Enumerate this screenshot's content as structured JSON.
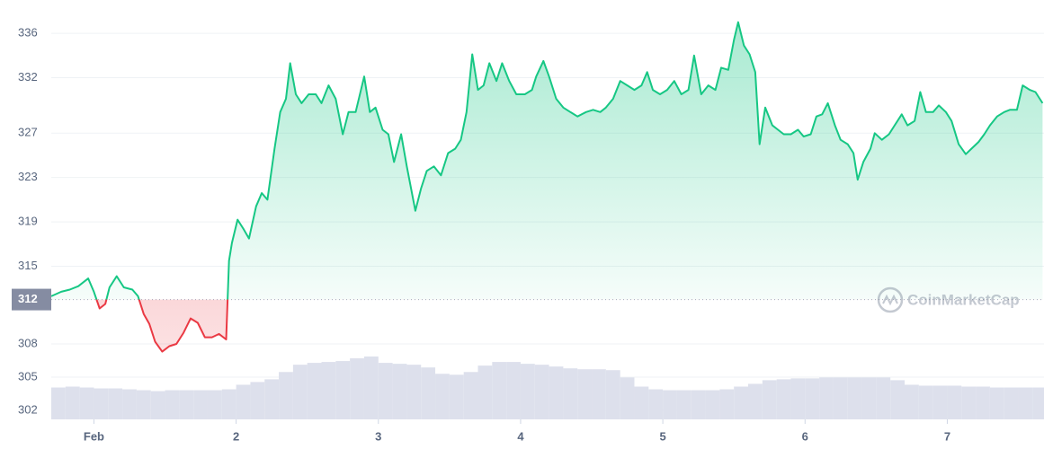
{
  "chart_data": {
    "type": "line",
    "baseline": 312,
    "color_up": "#16c784",
    "color_down": "#ea3943",
    "watermark": "CoinMarketCap",
    "grid": true,
    "xlim": [
      0.7,
      7.68
    ],
    "ylim": [
      301.2,
      339
    ],
    "xticks": [
      {
        "value": 1,
        "label": "Feb"
      },
      2,
      3,
      4,
      5,
      6,
      7
    ],
    "yticks": [
      302,
      305,
      308,
      315,
      319,
      323,
      327,
      332,
      336
    ],
    "x": [
      0.7,
      0.77,
      0.83,
      0.89,
      0.96,
      1.0,
      1.04,
      1.08,
      1.11,
      1.16,
      1.21,
      1.27,
      1.31,
      1.35,
      1.39,
      1.43,
      1.48,
      1.53,
      1.58,
      1.63,
      1.68,
      1.73,
      1.78,
      1.83,
      1.88,
      1.93,
      1.95,
      1.97,
      2.01,
      2.05,
      2.09,
      2.14,
      2.18,
      2.22,
      2.27,
      2.31,
      2.35,
      2.38,
      2.42,
      2.46,
      2.51,
      2.56,
      2.6,
      2.65,
      2.7,
      2.75,
      2.79,
      2.84,
      2.9,
      2.94,
      2.98,
      3.03,
      3.07,
      3.11,
      3.16,
      3.2,
      3.26,
      3.3,
      3.34,
      3.39,
      3.44,
      3.49,
      3.54,
      3.58,
      3.62,
      3.66,
      3.7,
      3.74,
      3.78,
      3.83,
      3.87,
      3.92,
      3.97,
      4.03,
      4.08,
      4.11,
      4.16,
      4.2,
      4.25,
      4.3,
      4.35,
      4.4,
      4.46,
      4.51,
      4.56,
      4.6,
      4.65,
      4.7,
      4.75,
      4.8,
      4.85,
      4.89,
      4.93,
      4.98,
      5.03,
      5.08,
      5.13,
      5.18,
      5.22,
      5.27,
      5.32,
      5.37,
      5.41,
      5.46,
      5.5,
      5.53,
      5.57,
      5.61,
      5.65,
      5.68,
      5.72,
      5.77,
      5.81,
      5.85,
      5.9,
      5.95,
      5.99,
      6.04,
      6.08,
      6.12,
      6.16,
      6.21,
      6.25,
      6.3,
      6.34,
      6.37,
      6.41,
      6.46,
      6.49,
      6.54,
      6.59,
      6.63,
      6.68,
      6.72,
      6.77,
      6.81,
      6.85,
      6.9,
      6.94,
      6.99,
      7.03,
      7.08,
      7.13,
      7.17,
      7.22,
      7.26,
      7.3,
      7.35,
      7.4,
      7.44,
      7.49,
      7.53,
      7.58,
      7.62,
      7.67
    ],
    "values": [
      312.3,
      312.7,
      312.9,
      313.2,
      313.9,
      312.7,
      311.2,
      311.6,
      313.1,
      314.1,
      313.1,
      312.9,
      312.3,
      310.7,
      309.8,
      308.2,
      307.3,
      307.8,
      308.0,
      309.0,
      310.3,
      309.9,
      308.6,
      308.6,
      308.9,
      308.4,
      315.5,
      317.1,
      319.2,
      318.4,
      317.5,
      320.4,
      321.6,
      321.0,
      325.6,
      328.9,
      330.1,
      333.3,
      330.5,
      329.7,
      330.5,
      330.5,
      329.7,
      331.3,
      330.1,
      326.9,
      328.9,
      328.9,
      332.1,
      328.9,
      329.3,
      327.3,
      326.9,
      324.4,
      326.9,
      324.0,
      320.0,
      322.0,
      323.6,
      324.0,
      323.2,
      325.2,
      325.6,
      326.4,
      328.9,
      334.1,
      330.9,
      331.3,
      333.3,
      331.7,
      333.3,
      331.7,
      330.5,
      330.5,
      330.9,
      332.1,
      333.5,
      332.1,
      330.1,
      329.3,
      328.9,
      328.5,
      328.9,
      329.1,
      328.9,
      329.3,
      330.1,
      331.7,
      331.3,
      330.9,
      331.3,
      332.5,
      330.9,
      330.5,
      330.9,
      331.7,
      330.5,
      330.9,
      334.0,
      330.5,
      331.3,
      330.9,
      332.9,
      332.7,
      335.4,
      337.0,
      334.9,
      334.1,
      332.5,
      326.0,
      329.3,
      327.7,
      327.3,
      326.9,
      326.9,
      327.3,
      326.7,
      326.9,
      328.5,
      328.7,
      329.7,
      327.7,
      326.4,
      326.0,
      325.2,
      322.8,
      324.4,
      325.6,
      327.0,
      326.4,
      326.9,
      327.7,
      328.7,
      327.7,
      328.1,
      330.7,
      328.9,
      328.9,
      329.5,
      328.9,
      328.1,
      326.0,
      325.1,
      325.6,
      326.2,
      326.9,
      327.7,
      328.5,
      328.9,
      329.1,
      329.1,
      331.3,
      330.9,
      330.7,
      329.7
    ],
    "volume": {
      "color": "#dde0ec",
      "x": [
        0.7,
        0.8,
        0.9,
        1.0,
        1.1,
        1.2,
        1.3,
        1.4,
        1.5,
        1.6,
        1.7,
        1.8,
        1.9,
        2.0,
        2.1,
        2.2,
        2.3,
        2.4,
        2.5,
        2.6,
        2.7,
        2.8,
        2.9,
        3.0,
        3.1,
        3.2,
        3.3,
        3.4,
        3.5,
        3.6,
        3.7,
        3.8,
        3.9,
        4.0,
        4.1,
        4.2,
        4.3,
        4.4,
        4.5,
        4.6,
        4.7,
        4.8,
        4.9,
        5.0,
        5.1,
        5.2,
        5.3,
        5.4,
        5.5,
        5.6,
        5.7,
        5.8,
        5.9,
        6.0,
        6.1,
        6.2,
        6.3,
        6.4,
        6.5,
        6.6,
        6.7,
        6.8,
        6.9,
        7.0,
        7.1,
        7.2,
        7.3,
        7.4,
        7.5,
        7.6
      ],
      "values": [
        35,
        36,
        35,
        34,
        34,
        33,
        32,
        31,
        32,
        32,
        32,
        32,
        33,
        38,
        41,
        44,
        52,
        60,
        62,
        63,
        64,
        67,
        69,
        62,
        61,
        60,
        57,
        50,
        49,
        52,
        59,
        63,
        63,
        61,
        60,
        58,
        56,
        55,
        55,
        54,
        46,
        36,
        33,
        32,
        32,
        32,
        32,
        33,
        36,
        39,
        43,
        44,
        45,
        45,
        46,
        46,
        46,
        46,
        46,
        43,
        38,
        37,
        37,
        37,
        36,
        36,
        35,
        35,
        35,
        35
      ]
    }
  }
}
